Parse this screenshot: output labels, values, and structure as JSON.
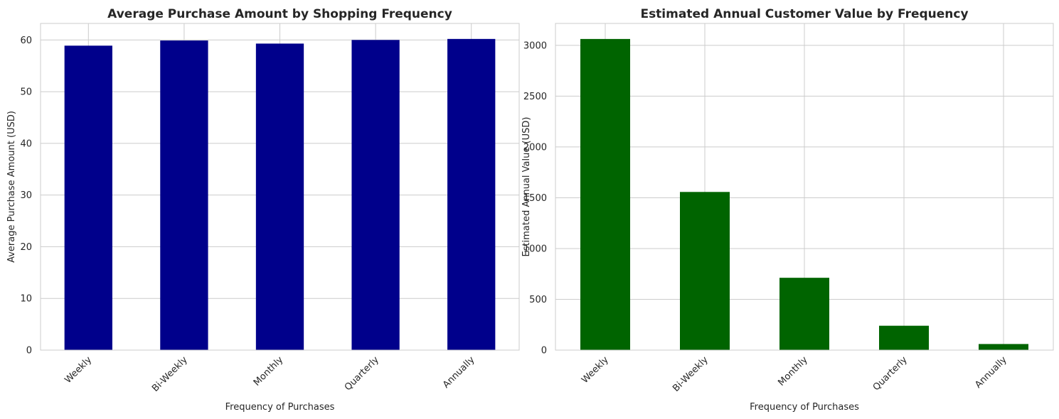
{
  "chart_data": [
    {
      "type": "bar",
      "title": "Average Purchase Amount by Shopping Frequency",
      "xlabel": "Frequency of Purchases",
      "ylabel": "Average Purchase Amount (USD)",
      "categories": [
        "Weekly",
        "Bi-Weekly",
        "Monthly",
        "Quarterly",
        "Annually"
      ],
      "values": [
        58.9,
        59.9,
        59.3,
        60.0,
        60.2
      ],
      "ylim": [
        0,
        63.2
      ],
      "yticks": [
        0,
        10,
        20,
        30,
        40,
        50,
        60
      ],
      "ytick_labels": [
        "0",
        "10",
        "20",
        "30",
        "40",
        "50",
        "60"
      ],
      "bar_color": "#00008b",
      "grid": true
    },
    {
      "type": "bar",
      "title": "Estimated Annual Customer Value by Frequency",
      "xlabel": "Frequency of Purchases",
      "ylabel": "Estimated Annual Value (USD)",
      "categories": [
        "Weekly",
        "Bi-Weekly",
        "Monthly",
        "Quarterly",
        "Annually"
      ],
      "values": [
        3063,
        1557,
        712,
        240,
        60
      ],
      "ylim": [
        0,
        3216
      ],
      "yticks": [
        0,
        500,
        1000,
        1500,
        2000,
        2500,
        3000
      ],
      "ytick_labels": [
        "0",
        "500",
        "1000",
        "1500",
        "2000",
        "2500",
        "3000"
      ],
      "bar_color": "#006400",
      "grid": true
    }
  ]
}
